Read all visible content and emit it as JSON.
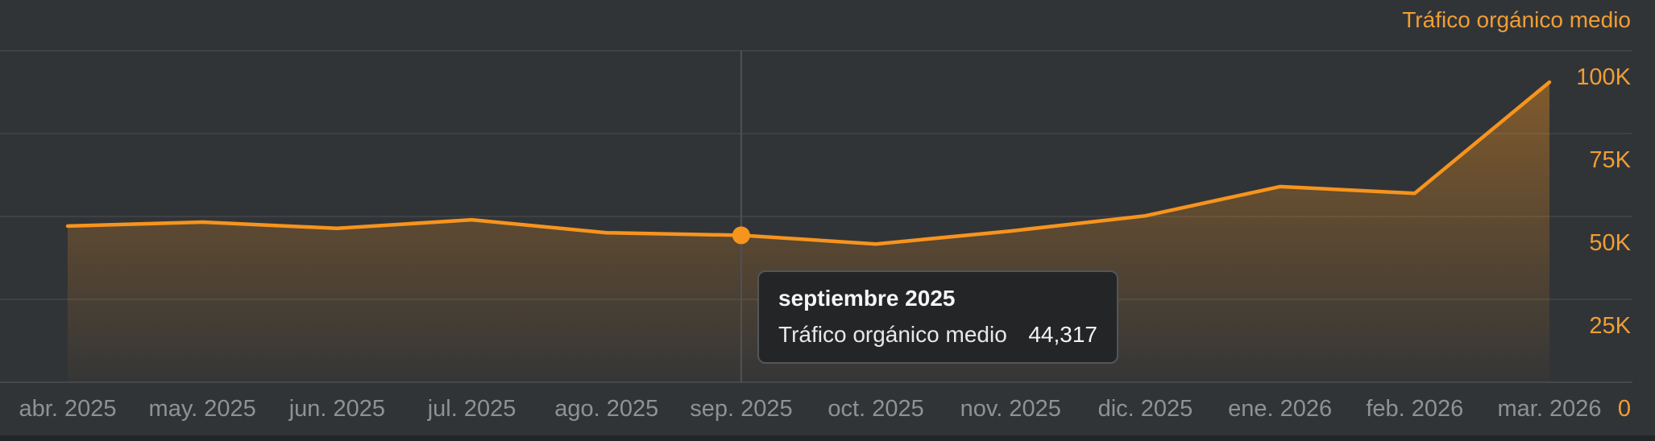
{
  "legend": {
    "label": "Tráfico orgánico medio"
  },
  "tooltip": {
    "title": "septiembre 2025",
    "metric_label": "Tráfico orgánico medio",
    "value": "44,317"
  },
  "chart_data": {
    "type": "area",
    "title": "Tráfico orgánico medio",
    "xlabel": "",
    "ylabel": "",
    "x_labels": [
      "abr. 2025",
      "may. 2025",
      "jun. 2025",
      "jul. 2025",
      "ago. 2025",
      "sep. 2025",
      "oct. 2025",
      "nov. 2025",
      "dic. 2025",
      "ene. 2026",
      "feb. 2026",
      "mar. 2026"
    ],
    "values": [
      47100,
      48300,
      46400,
      49000,
      45100,
      44317,
      41700,
      45600,
      50200,
      59000,
      57000,
      90500
    ],
    "highlight": {
      "index": 5,
      "x_label": "sep. 2025",
      "month_full": "septiembre 2025",
      "value": 44317,
      "value_display": "44,317"
    },
    "y_ticks": [
      {
        "label": "100K",
        "value": 100000
      },
      {
        "label": "75K",
        "value": 75000
      },
      {
        "label": "50K",
        "value": 50000
      },
      {
        "label": "25K",
        "value": 25000
      },
      {
        "label": "0",
        "value": 0
      }
    ],
    "ylim": [
      0,
      100000
    ],
    "grid": "horizontal",
    "legend_position": "top-right",
    "colors": {
      "line": "#f7941d",
      "area_top": "rgba(247,148,29,0.40)",
      "area_bottom": "rgba(247,148,29,0.02)",
      "axis_value_text": "#f09e35",
      "month_text": "#8f9295",
      "gridline": "#43474a",
      "baseline": "#4c5053",
      "crosshair": "#4e5255",
      "background": "#313437"
    }
  }
}
